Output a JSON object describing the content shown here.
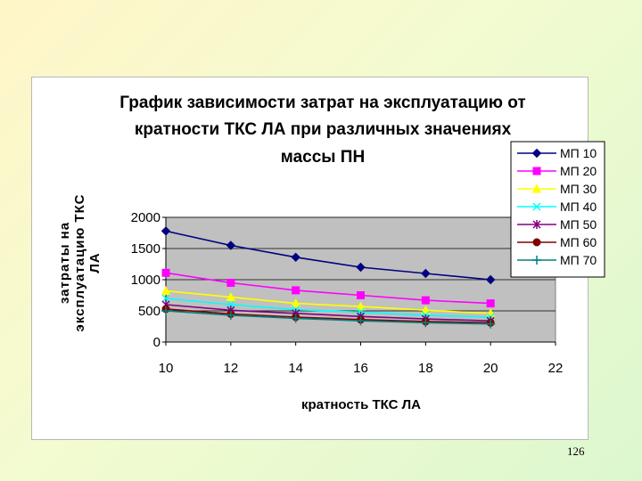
{
  "page": {
    "number": "126"
  },
  "chart_data": {
    "type": "line",
    "title_lines": [
      "График зависимости затрат на эксплуатацию от",
      "кратности ТКС ЛА при различных значениях",
      "массы ПН"
    ],
    "xlabel": "кратность ТКС ЛА",
    "ylabel_lines": [
      "затраты на",
      "эксплуатацию ТКС",
      "ЛА"
    ],
    "xlim": [
      10,
      22
    ],
    "ylim": [
      0,
      2000
    ],
    "x_ticks": [
      "10",
      "12",
      "14",
      "16",
      "18",
      "20",
      "22"
    ],
    "y_ticks": [
      "0",
      "500",
      "1000",
      "1500",
      "2000"
    ],
    "grid": "horizontal",
    "legend_position": "right",
    "x": [
      10,
      12,
      14,
      16,
      18,
      20
    ],
    "series": [
      {
        "name": "МП 10",
        "values": [
          1780,
          1550,
          1360,
          1200,
          1100,
          1000
        ],
        "color": "#000080",
        "marker": "diamond"
      },
      {
        "name": "МП 20",
        "values": [
          1110,
          950,
          830,
          750,
          670,
          620
        ],
        "color": "#ff00ff",
        "marker": "square"
      },
      {
        "name": "МП 30",
        "values": [
          820,
          720,
          620,
          570,
          510,
          460
        ],
        "color": "#ffff00",
        "marker": "triangle"
      },
      {
        "name": "МП 40",
        "values": [
          700,
          600,
          520,
          480,
          430,
          400
        ],
        "color": "#00ffff",
        "marker": "x"
      },
      {
        "name": "МП 50",
        "values": [
          600,
          510,
          460,
          410,
          370,
          340
        ],
        "color": "#800080",
        "marker": "star"
      },
      {
        "name": "МП 60",
        "values": [
          530,
          450,
          400,
          360,
          330,
          310
        ],
        "color": "#800000",
        "marker": "circle"
      },
      {
        "name": "МП 70",
        "values": [
          500,
          430,
          380,
          340,
          310,
          290
        ],
        "color": "#008080",
        "marker": "plus"
      }
    ]
  }
}
